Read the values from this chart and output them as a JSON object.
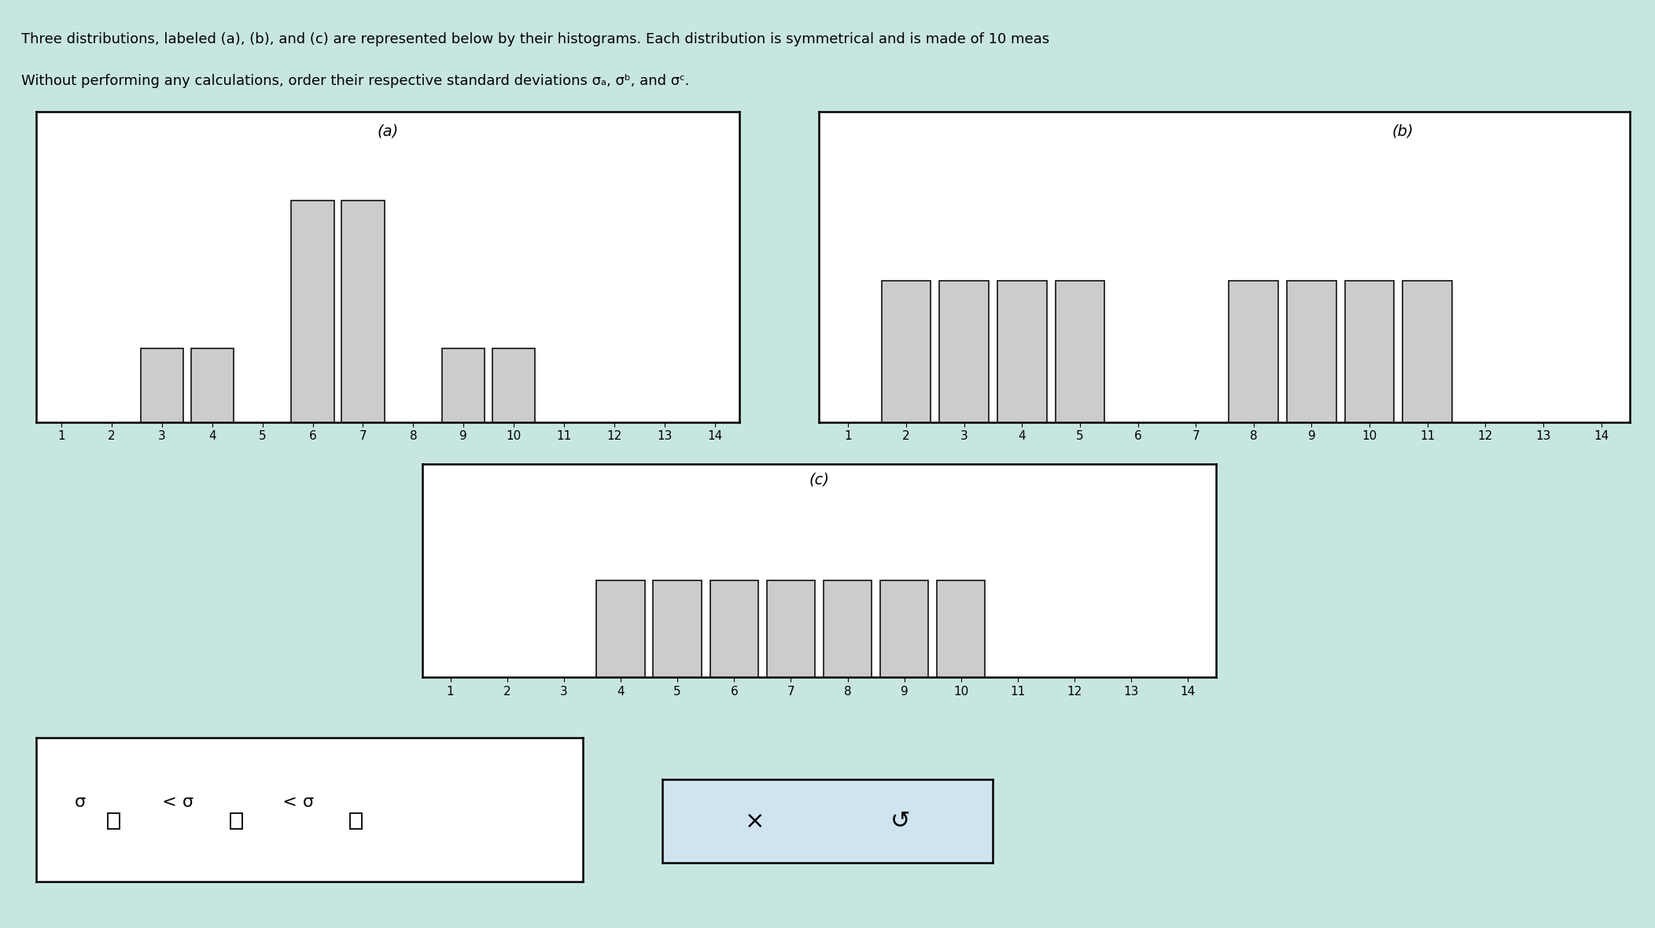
{
  "background_color": "#c8e6e0",
  "box_bg": "#ffffff",
  "bar_color": "#cccccc",
  "bar_edge": "#111111",
  "label_fs": 14,
  "tick_fs": 11,
  "title_fs": 13,
  "hist_a_heights": [
    0,
    0,
    1,
    1,
    0,
    3,
    3,
    0,
    1,
    1,
    0,
    0,
    0,
    0
  ],
  "hist_b_heights": [
    0,
    1,
    1,
    1,
    1,
    0,
    0,
    1,
    1,
    1,
    1,
    0,
    0,
    0
  ],
  "hist_c_heights": [
    0,
    0,
    0,
    1,
    1,
    1,
    1,
    1,
    1,
    1,
    0,
    0,
    0,
    0
  ],
  "answer_box_bg": "#ffffff",
  "button_box_bg": "#d0e4f0"
}
